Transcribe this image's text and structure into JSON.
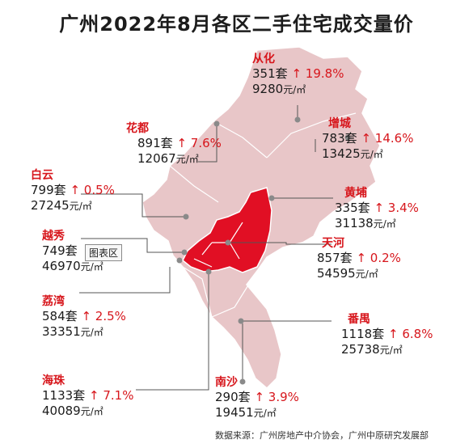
{
  "title": "广州2022年8月各区二手住宅成交量价",
  "units": {
    "set": "套",
    "price_unit": "元/㎡",
    "arrow": "↑"
  },
  "districts": [
    {
      "name": "从化",
      "count": "351",
      "change": "19.8%",
      "price": "9280"
    },
    {
      "name": "增城",
      "count": "783",
      "change": "14.6%",
      "price": "13425"
    },
    {
      "name": "花都",
      "count": "891",
      "change": "7.6%",
      "price": "12067"
    },
    {
      "name": "白云",
      "count": "799",
      "change": "0.5%",
      "price": "27245"
    },
    {
      "name": "黄埔",
      "count": "335",
      "change": "3.4%",
      "price": "31138"
    },
    {
      "name": "越秀",
      "count": "749",
      "change": "",
      "price": "46970"
    },
    {
      "name": "天河",
      "count": "857",
      "change": "0.2%",
      "price": "54595"
    },
    {
      "name": "荔湾",
      "count": "584",
      "change": "2.5%",
      "price": "33351"
    },
    {
      "name": "番禺",
      "count": "1118",
      "change": "6.8%",
      "price": "25738"
    },
    {
      "name": "海珠",
      "count": "1133",
      "change": "7.1%",
      "price": "40089"
    },
    {
      "name": "南沙",
      "count": "290",
      "change": "3.9%",
      "price": "19451"
    }
  ],
  "tooltip": "图表区",
  "source": "数据来源：广州房地产中介协会，广州中原研究发展部",
  "colors": {
    "map_light": "#e8c6c8",
    "map_core": "#e10f24",
    "accent": "#d7161c"
  }
}
